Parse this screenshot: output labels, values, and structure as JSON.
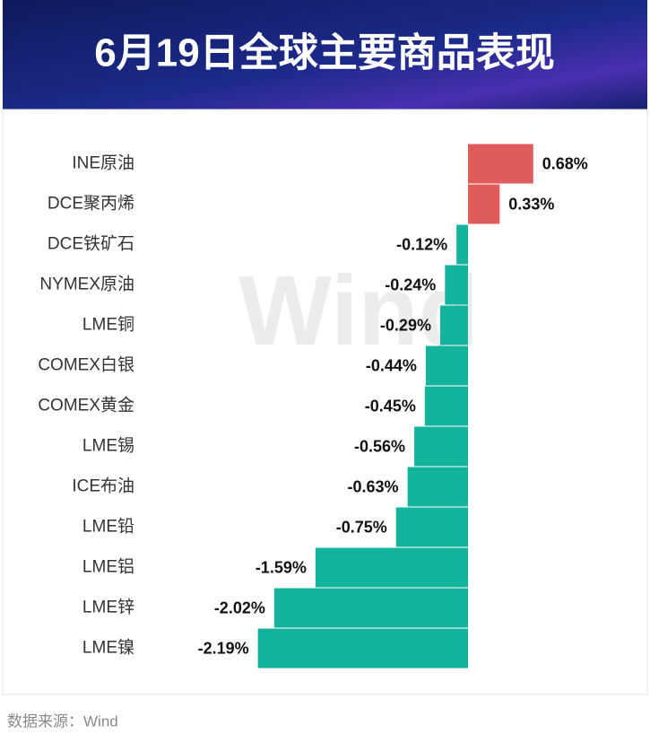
{
  "chart_data": {
    "type": "bar",
    "orientation": "horizontal",
    "title": "6月19日全球主要商品表现",
    "source": "数据来源：Wind",
    "watermark": "Wind",
    "categories": [
      "INE原油",
      "DCE聚丙烯",
      "DCE铁矿石",
      "NYMEX原油",
      "LME铜",
      "COMEX白银",
      "COMEX黄金",
      "LME锡",
      "ICE布油",
      "LME铅",
      "LME铝",
      "LME锌",
      "LME镍"
    ],
    "values": [
      0.68,
      0.33,
      -0.12,
      -0.24,
      -0.29,
      -0.44,
      -0.45,
      -0.56,
      -0.63,
      -0.75,
      -1.59,
      -2.02,
      -2.19
    ],
    "value_labels": [
      "0.68%",
      "0.33%",
      "-0.12%",
      "-0.24%",
      "-0.29%",
      "-0.44%",
      "-0.45%",
      "-0.56%",
      "-0.63%",
      "-0.75%",
      "-1.59%",
      "-2.02%",
      "-2.19%"
    ],
    "positive_color": "#e05c5c",
    "negative_color": "#13b39c"
  }
}
